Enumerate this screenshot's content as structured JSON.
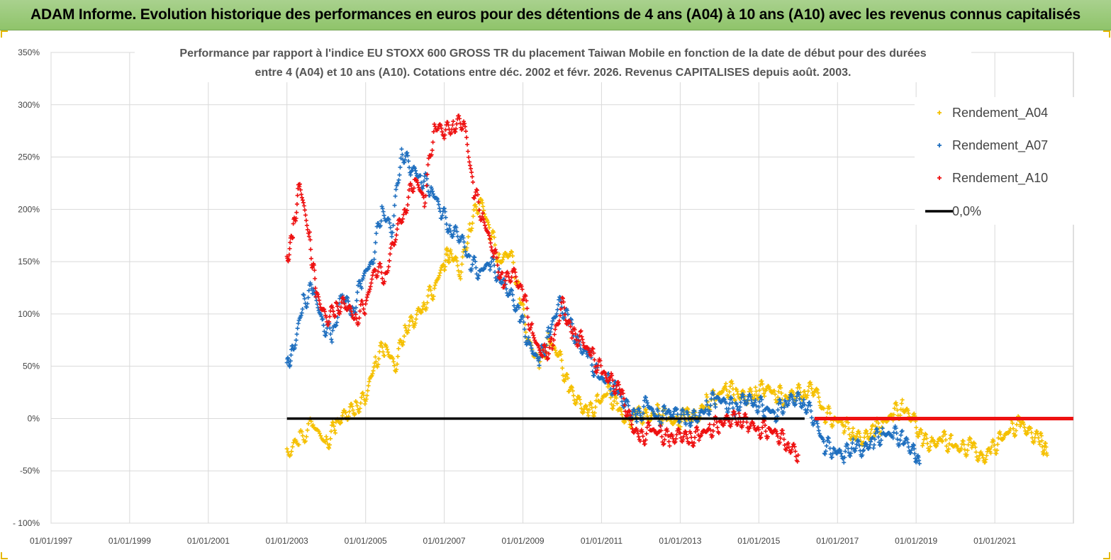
{
  "banner": {
    "title": "ADAM Informe. Evolution historique des performances en euros pour des détentions de 4 ans (A04) à 10 ans (A10) avec les revenus connus capitalisés"
  },
  "colors": {
    "banner_bg": "#9dcc7c",
    "A04": "#f5c000",
    "A07": "#1f6fbf",
    "A10": "#ee1111",
    "zero": "#000000",
    "grid": "#d9d9d9"
  },
  "chart_data": {
    "type": "scatter",
    "title_lines": [
      "Performance par rapport à l'indice EU STOXX 600 GROSS TR  du placement Taiwan Mobile  en fonction de la date de début pour des durées",
      "entre 4 (A04) et 10 ans (A10).  Cotations entre déc. 2002 et févr. 2026. Revenus CAPITALISES  depuis août. 2003."
    ],
    "x_axis": {
      "type": "date",
      "min": "1997-01-01",
      "max": "2023-01-01",
      "tick_labels": [
        "01/01/1997",
        "01/01/1999",
        "01/01/2001",
        "01/01/2003",
        "01/01/2005",
        "01/01/2007",
        "01/01/2009",
        "01/01/2011",
        "01/01/2013",
        "01/01/2015",
        "01/01/2017",
        "01/01/2019",
        "01/01/2021"
      ],
      "tick_dates": [
        "1997-01-01",
        "1999-01-01",
        "2001-01-01",
        "2003-01-01",
        "2005-01-01",
        "2007-01-01",
        "2009-01-01",
        "2011-01-01",
        "2013-01-01",
        "2015-01-01",
        "2017-01-01",
        "2019-01-01",
        "2021-01-01"
      ]
    },
    "y_axis": {
      "min": -100,
      "max": 350,
      "unit": "%",
      "tick_labels": [
        "- 100%",
        "-50%",
        "0%",
        "50%",
        "100%",
        "150%",
        "200%",
        "250%",
        "300%",
        "350%"
      ],
      "tick_values": [
        -100,
        -50,
        0,
        50,
        100,
        150,
        200,
        250,
        300,
        350
      ]
    },
    "grid": true,
    "legend_position": "top-right",
    "series": [
      {
        "name": "Rendement_A04",
        "marker": "+",
        "color": "#f5c000",
        "x": [
          "2003-01-01",
          "2003-05-01",
          "2003-09-01",
          "2004-01-01",
          "2004-04-01",
          "2004-07-01",
          "2004-10-01",
          "2005-01-01",
          "2005-04-01",
          "2005-07-01",
          "2005-10-01",
          "2006-01-01",
          "2006-04-01",
          "2006-07-01",
          "2006-10-01",
          "2007-01-01",
          "2007-03-01",
          "2007-06-01",
          "2007-09-01",
          "2007-12-01",
          "2008-03-01",
          "2008-06-01",
          "2008-09-01",
          "2008-12-01",
          "2009-03-01",
          "2009-06-01",
          "2009-09-01",
          "2009-12-01",
          "2010-03-01",
          "2010-06-01",
          "2010-09-01",
          "2010-12-01",
          "2011-03-01",
          "2011-06-01",
          "2011-09-01",
          "2011-12-01",
          "2012-03-01",
          "2012-06-01",
          "2012-09-01",
          "2012-12-01",
          "2013-03-01",
          "2013-06-01",
          "2013-09-01",
          "2013-12-01",
          "2014-03-01",
          "2014-06-01",
          "2014-09-01",
          "2014-12-01",
          "2015-03-01",
          "2015-06-01",
          "2015-09-01",
          "2015-12-01",
          "2016-03-01",
          "2016-06-01",
          "2016-09-01",
          "2016-12-01",
          "2017-03-01",
          "2017-06-01",
          "2017-09-01",
          "2017-12-01",
          "2018-03-01",
          "2018-06-01",
          "2018-09-01",
          "2018-12-01",
          "2019-03-01",
          "2019-06-01",
          "2019-09-01",
          "2019-12-01",
          "2020-03-01",
          "2020-06-01",
          "2020-09-01",
          "2020-12-01",
          "2021-03-01",
          "2021-06-01",
          "2021-09-01",
          "2021-12-01",
          "2022-03-01",
          "2022-05-01"
        ],
        "y": [
          -33,
          -20,
          -5,
          -25,
          -5,
          5,
          10,
          20,
          55,
          70,
          50,
          85,
          95,
          110,
          125,
          150,
          160,
          140,
          185,
          210,
          180,
          150,
          160,
          120,
          70,
          55,
          75,
          60,
          30,
          15,
          5,
          15,
          25,
          10,
          -5,
          5,
          0,
          5,
          0,
          -5,
          5,
          0,
          15,
          20,
          30,
          25,
          20,
          25,
          30,
          25,
          20,
          25,
          25,
          30,
          5,
          0,
          -5,
          -15,
          -20,
          -10,
          -5,
          5,
          10,
          0,
          -20,
          -25,
          -20,
          -25,
          -30,
          -25,
          -40,
          -30,
          -20,
          -10,
          -5,
          -15,
          -20,
          -35
        ]
      },
      {
        "name": "Rendement_A07",
        "marker": "+",
        "color": "#1f6fbf",
        "x": [
          "2003-01-01",
          "2003-03-01",
          "2003-06-01",
          "2003-09-01",
          "2003-12-01",
          "2004-03-01",
          "2004-06-01",
          "2004-09-01",
          "2004-12-01",
          "2005-03-01",
          "2005-06-01",
          "2005-09-01",
          "2005-12-01",
          "2006-03-01",
          "2006-06-01",
          "2006-09-01",
          "2006-12-01",
          "2007-03-01",
          "2007-06-01",
          "2007-09-01",
          "2007-12-01",
          "2008-03-01",
          "2008-06-01",
          "2008-09-01",
          "2008-12-01",
          "2009-03-01",
          "2009-06-01",
          "2009-09-01",
          "2009-12-01",
          "2010-03-01",
          "2010-06-01",
          "2010-09-01",
          "2010-12-01",
          "2011-03-01",
          "2011-06-01",
          "2011-09-01",
          "2011-12-01",
          "2012-03-01",
          "2012-06-01",
          "2012-09-01",
          "2012-12-01",
          "2013-03-01",
          "2013-06-01",
          "2013-09-01",
          "2013-12-01",
          "2014-03-01",
          "2014-06-01",
          "2014-09-01",
          "2014-12-01",
          "2015-03-01",
          "2015-06-01",
          "2015-09-01",
          "2015-12-01",
          "2016-03-01",
          "2016-06-01",
          "2016-09-01",
          "2016-12-01",
          "2017-03-01",
          "2017-06-01",
          "2017-09-01",
          "2017-12-01",
          "2018-03-01",
          "2018-06-01",
          "2018-09-01",
          "2018-12-01",
          "2019-02-01"
        ],
        "y": [
          50,
          65,
          110,
          125,
          90,
          80,
          120,
          100,
          135,
          150,
          200,
          180,
          255,
          240,
          230,
          220,
          200,
          180,
          175,
          150,
          140,
          150,
          135,
          120,
          100,
          70,
          55,
          80,
          110,
          95,
          70,
          60,
          40,
          35,
          25,
          10,
          0,
          15,
          0,
          5,
          5,
          0,
          0,
          10,
          20,
          15,
          10,
          20,
          15,
          10,
          5,
          15,
          20,
          15,
          0,
          -25,
          -30,
          -35,
          -25,
          -30,
          -20,
          -15,
          -15,
          -20,
          -30,
          -43
        ]
      },
      {
        "name": "Rendement_A10",
        "marker": "+",
        "color": "#ee1111",
        "x": [
          "2003-01-01",
          "2003-03-01",
          "2003-05-01",
          "2003-08-01",
          "2003-10-01",
          "2004-01-01",
          "2004-04-01",
          "2004-07-01",
          "2004-10-01",
          "2005-01-01",
          "2005-04-01",
          "2005-07-01",
          "2005-10-01",
          "2006-01-01",
          "2006-04-01",
          "2006-07-01",
          "2006-10-01",
          "2007-01-01",
          "2007-04-01",
          "2007-07-01",
          "2007-10-01",
          "2008-01-01",
          "2008-04-01",
          "2008-07-01",
          "2008-10-01",
          "2009-01-01",
          "2009-04-01",
          "2009-07-01",
          "2009-10-01",
          "2010-01-01",
          "2010-04-01",
          "2010-07-01",
          "2010-10-01",
          "2011-01-01",
          "2011-04-01",
          "2011-07-01",
          "2011-10-01",
          "2012-01-01",
          "2012-04-01",
          "2012-07-01",
          "2012-10-01",
          "2013-01-01",
          "2013-04-01",
          "2013-07-01",
          "2013-10-01",
          "2014-01-01",
          "2014-04-01",
          "2014-07-01",
          "2014-10-01",
          "2015-01-01",
          "2015-04-01",
          "2015-07-01",
          "2015-10-01",
          "2016-01-01"
        ],
        "y": [
          150,
          180,
          225,
          170,
          120,
          95,
          105,
          110,
          95,
          110,
          145,
          135,
          175,
          200,
          230,
          210,
          280,
          275,
          280,
          285,
          220,
          190,
          160,
          130,
          140,
          120,
          80,
          60,
          70,
          110,
          80,
          75,
          60,
          45,
          35,
          25,
          -5,
          -20,
          -10,
          -15,
          -20,
          -15,
          -20,
          -15,
          -10,
          -5,
          0,
          0,
          -5,
          -10,
          -10,
          -15,
          -25,
          -35
        ]
      },
      {
        "name": "Rendement_A10",
        "marker": "+",
        "color": "#ee1111",
        "x": [
          "2016-06-01",
          "2022-12-31"
        ],
        "y": [
          0,
          0
        ]
      },
      {
        "name": "0,0%",
        "marker": "line",
        "color": "#000000",
        "x": [
          "2003-01-01",
          "2016-03-01"
        ],
        "y": [
          0,
          0
        ]
      }
    ],
    "legend": [
      "Rendement_A04",
      "Rendement_A07",
      "Rendement_A10",
      "0,0%"
    ]
  }
}
